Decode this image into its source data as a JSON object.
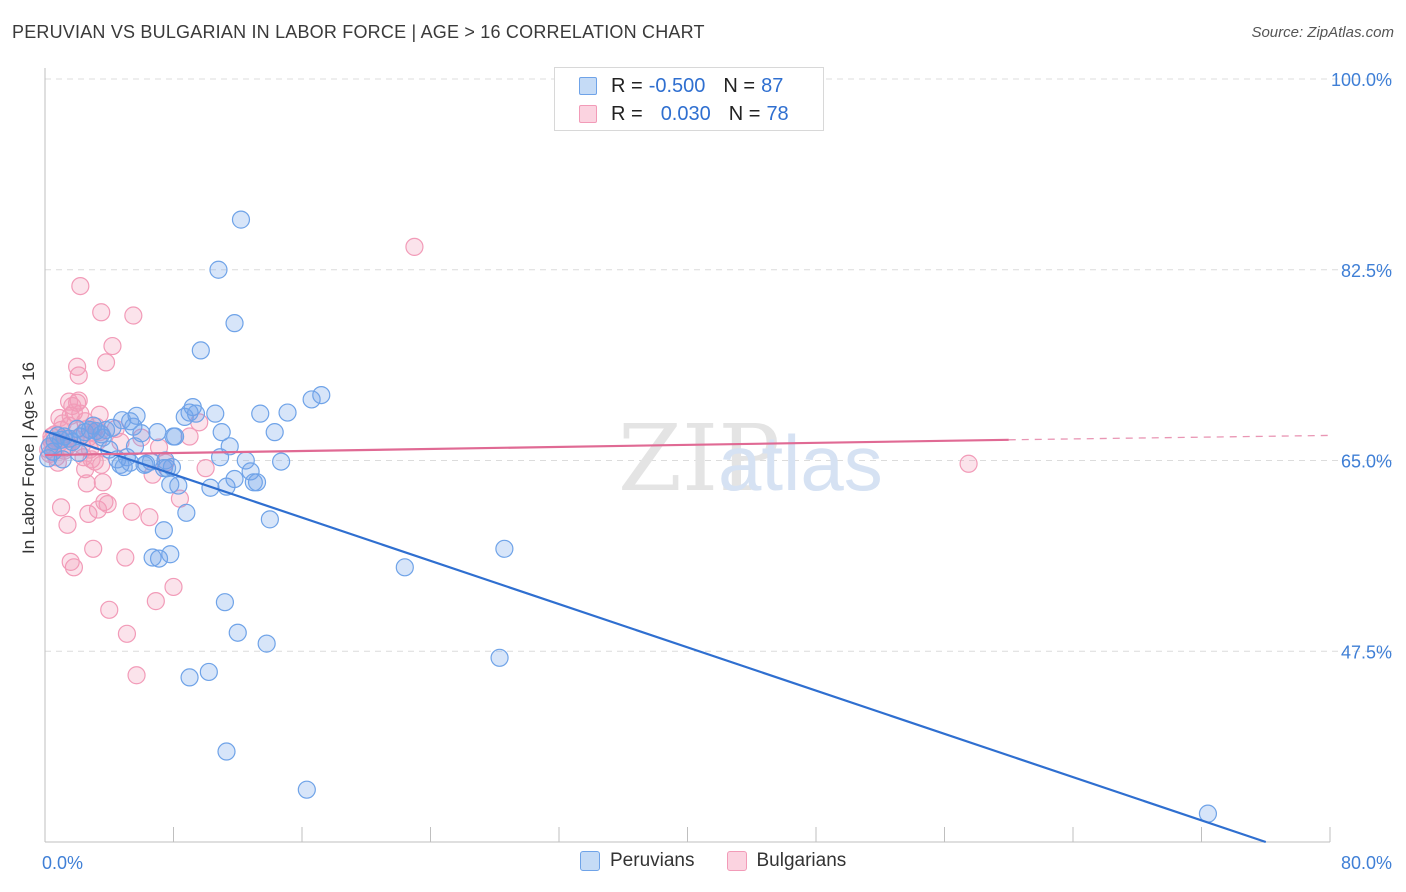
{
  "title": "PERUVIAN VS BULGARIAN IN LABOR FORCE | AGE > 16 CORRELATION CHART",
  "source": "Source: ZipAtlas.com",
  "watermark": {
    "zip": "ZIP",
    "atlas": "atlas"
  },
  "legend": {
    "rows": [
      {
        "r_label": "R = ",
        "r_value": "-0.500",
        "n_label": "N = ",
        "n_value": "87"
      },
      {
        "r_label": "R = ",
        "r_value": "0.030",
        "n_label": "N = ",
        "n_value": "78"
      }
    ]
  },
  "chart_data": {
    "type": "scatter",
    "title": "PERUVIAN VS BULGARIAN IN LABOR FORCE | AGE > 16 CORRELATION CHART",
    "xlabel": "",
    "ylabel": "In Labor Force | Age > 16",
    "xlim": [
      0,
      80
    ],
    "ylim": [
      30,
      100
    ],
    "x_tick_labels": [
      "0.0%",
      "80.0%"
    ],
    "y_ticks": [
      47.5,
      65.0,
      82.5,
      100.0
    ],
    "y_tick_labels": [
      "47.5%",
      "65.0%",
      "82.5%",
      "100.0%"
    ],
    "grid": true,
    "legend_position": "top-center",
    "series": [
      {
        "name": "Peruvians",
        "color": "#6fa3e8",
        "trend_color": "#2f6fd0",
        "trend": {
          "x0": 0,
          "y0": 67.7,
          "x1": 76,
          "y1": 30.0
        },
        "points": [
          [
            0.3,
            66.3
          ],
          [
            0.5,
            65.8
          ],
          [
            0.6,
            66.8
          ],
          [
            0.8,
            67.3
          ],
          [
            1.0,
            66.9
          ],
          [
            1.2,
            67.2
          ],
          [
            1.5,
            67.0
          ],
          [
            1.7,
            66.7
          ],
          [
            2.0,
            67.9
          ],
          [
            2.2,
            67.2
          ],
          [
            2.5,
            67.6
          ],
          [
            2.8,
            67.8
          ],
          [
            3.0,
            68.2
          ],
          [
            3.2,
            67.7
          ],
          [
            3.5,
            67.4
          ],
          [
            3.8,
            67.8
          ],
          [
            4.0,
            66.0
          ],
          [
            4.2,
            68.0
          ],
          [
            4.5,
            65.1
          ],
          [
            4.7,
            64.6
          ],
          [
            4.9,
            64.4
          ],
          [
            5.1,
            65.3
          ],
          [
            5.3,
            64.8
          ],
          [
            5.5,
            68.1
          ],
          [
            5.7,
            69.1
          ],
          [
            5.3,
            68.6
          ],
          [
            6.0,
            67.5
          ],
          [
            6.3,
            64.7
          ],
          [
            6.6,
            64.9
          ],
          [
            7.0,
            67.6
          ],
          [
            7.4,
            64.3
          ],
          [
            7.5,
            65.0
          ],
          [
            7.6,
            64.3
          ],
          [
            7.8,
            62.8
          ],
          [
            7.9,
            64.4
          ],
          [
            8.0,
            67.2
          ],
          [
            8.1,
            67.2
          ],
          [
            7.4,
            58.6
          ],
          [
            7.8,
            56.4
          ],
          [
            6.7,
            56.1
          ],
          [
            7.1,
            56.0
          ],
          [
            9.0,
            69.4
          ],
          [
            9.2,
            69.9
          ],
          [
            8.7,
            69.0
          ],
          [
            9.4,
            69.3
          ],
          [
            9.7,
            75.1
          ],
          [
            8.8,
            60.2
          ],
          [
            9.0,
            45.1
          ],
          [
            10.3,
            62.5
          ],
          [
            10.6,
            69.3
          ],
          [
            11.0,
            67.6
          ],
          [
            10.9,
            65.3
          ],
          [
            11.5,
            66.3
          ],
          [
            11.3,
            62.6
          ],
          [
            11.2,
            52.0
          ],
          [
            11.8,
            63.3
          ],
          [
            12.0,
            49.2
          ],
          [
            12.5,
            65.0
          ],
          [
            12.8,
            64.0
          ],
          [
            13.0,
            63.0
          ],
          [
            13.2,
            63.0
          ],
          [
            13.4,
            69.3
          ],
          [
            13.8,
            48.2
          ],
          [
            14.0,
            59.6
          ],
          [
            14.3,
            67.6
          ],
          [
            14.7,
            64.9
          ],
          [
            15.1,
            69.4
          ],
          [
            16.6,
            70.6
          ],
          [
            17.2,
            71.0
          ],
          [
            10.2,
            45.6
          ],
          [
            10.8,
            82.5
          ],
          [
            11.8,
            77.6
          ],
          [
            12.2,
            87.1
          ],
          [
            11.3,
            38.3
          ],
          [
            16.3,
            34.8
          ],
          [
            22.4,
            55.2
          ],
          [
            28.3,
            46.9
          ],
          [
            28.6,
            56.9
          ],
          [
            72.4,
            32.6
          ],
          [
            4.8,
            68.7
          ],
          [
            5.6,
            66.3
          ],
          [
            2.1,
            65.7
          ],
          [
            1.1,
            65.1
          ],
          [
            0.2,
            65.2
          ],
          [
            6.2,
            64.6
          ],
          [
            3.6,
            67.1
          ],
          [
            8.3,
            62.7
          ]
        ]
      },
      {
        "name": "Bulgarians",
        "color": "#f29bb8",
        "trend_color": "#e06a94",
        "trend": {
          "x0": 0,
          "y0": 65.5,
          "x1": 60,
          "y1": 66.9
        },
        "trend_dashed": {
          "x0": 60,
          "y0": 66.9,
          "x1": 80,
          "y1": 67.3
        },
        "points": [
          [
            0.2,
            66.0
          ],
          [
            0.3,
            65.6
          ],
          [
            0.4,
            66.8
          ],
          [
            0.5,
            66.3
          ],
          [
            0.6,
            67.4
          ],
          [
            0.7,
            65.3
          ],
          [
            0.8,
            64.8
          ],
          [
            0.9,
            66.6
          ],
          [
            1.0,
            67.8
          ],
          [
            1.1,
            68.4
          ],
          [
            1.2,
            65.9
          ],
          [
            1.3,
            67.0
          ],
          [
            1.4,
            66.3
          ],
          [
            1.5,
            68.2
          ],
          [
            1.6,
            69.1
          ],
          [
            1.7,
            70.0
          ],
          [
            1.8,
            69.4
          ],
          [
            1.9,
            67.0
          ],
          [
            2.0,
            70.3
          ],
          [
            2.1,
            70.5
          ],
          [
            2.2,
            69.3
          ],
          [
            2.3,
            66.4
          ],
          [
            2.4,
            65.3
          ],
          [
            2.5,
            68.6
          ],
          [
            2.6,
            67.9
          ],
          [
            2.7,
            67.1
          ],
          [
            2.8,
            66.0
          ],
          [
            2.9,
            65.1
          ],
          [
            3.0,
            67.6
          ],
          [
            3.1,
            64.9
          ],
          [
            3.2,
            68.1
          ],
          [
            3.3,
            66.8
          ],
          [
            3.4,
            67.6
          ],
          [
            3.5,
            64.6
          ],
          [
            3.6,
            63.0
          ],
          [
            3.7,
            61.2
          ],
          [
            3.9,
            61.0
          ],
          [
            1.0,
            60.7
          ],
          [
            1.4,
            59.1
          ],
          [
            1.6,
            55.7
          ],
          [
            1.8,
            55.2
          ],
          [
            2.0,
            73.6
          ],
          [
            2.1,
            72.8
          ],
          [
            2.2,
            81.0
          ],
          [
            2.5,
            64.2
          ],
          [
            2.7,
            60.1
          ],
          [
            3.0,
            56.9
          ],
          [
            3.4,
            69.2
          ],
          [
            3.5,
            78.6
          ],
          [
            3.8,
            74.0
          ],
          [
            4.0,
            51.3
          ],
          [
            4.2,
            75.5
          ],
          [
            4.4,
            67.9
          ],
          [
            5.0,
            56.1
          ],
          [
            5.1,
            49.1
          ],
          [
            5.4,
            60.3
          ],
          [
            5.5,
            78.3
          ],
          [
            5.7,
            45.3
          ],
          [
            6.0,
            67.1
          ],
          [
            6.5,
            59.8
          ],
          [
            6.7,
            63.7
          ],
          [
            6.9,
            52.1
          ],
          [
            7.1,
            66.2
          ],
          [
            7.5,
            64.8
          ],
          [
            8.0,
            53.4
          ],
          [
            8.4,
            61.5
          ],
          [
            9.0,
            67.2
          ],
          [
            9.6,
            68.5
          ],
          [
            10.0,
            64.3
          ],
          [
            1.5,
            70.4
          ],
          [
            0.9,
            68.9
          ],
          [
            2.6,
            62.9
          ],
          [
            3.3,
            60.5
          ],
          [
            23.0,
            84.6
          ],
          [
            57.5,
            64.7
          ],
          [
            4.7,
            66.7
          ],
          [
            0.4,
            67.2
          ],
          [
            1.2,
            66.1
          ]
        ]
      }
    ]
  }
}
